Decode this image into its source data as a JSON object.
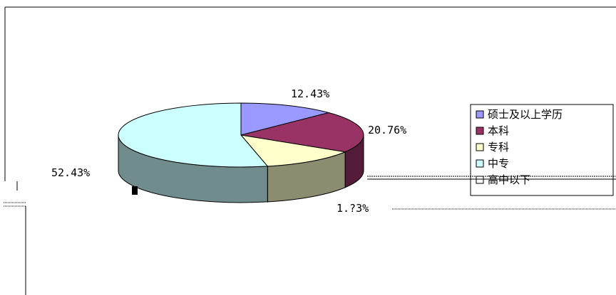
{
  "chart_data": {
    "type": "pie",
    "style": "3d-exploded",
    "categories": [
      "硕士及以上学历",
      "本科",
      "专科",
      "中专"
    ],
    "values": [
      12.43,
      20.76,
      12.42,
      52.43
    ],
    "labels": [
      "12.43%",
      "20.76%",
      "",
      "52.43%"
    ],
    "other_label": "1.?3%",
    "colors": [
      "#9999ff",
      "#993366",
      "#ffffcc",
      "#ccffff"
    ],
    "legend": {
      "placement": "right",
      "entries": [
        "硕士及以上学历",
        "本科",
        "专科",
        "中专",
        "高中以下"
      ]
    }
  }
}
